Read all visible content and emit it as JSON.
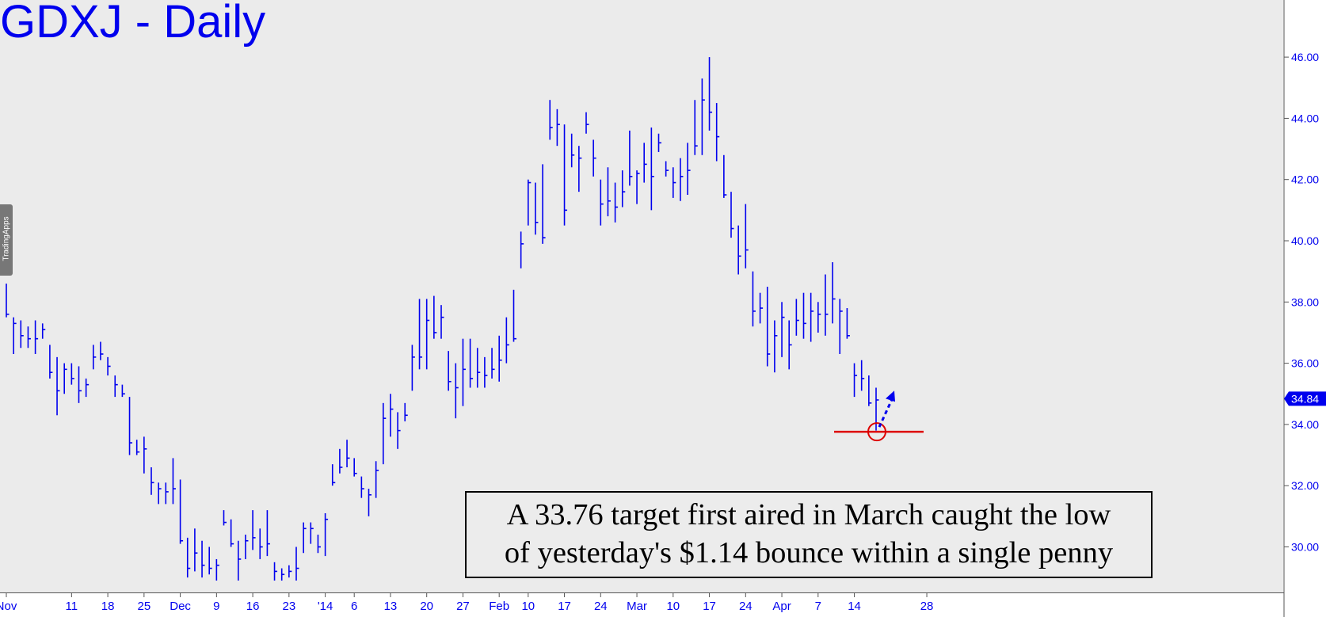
{
  "chart_data": {
    "type": "ohlc",
    "title": "GDXJ - Daily",
    "ylim": [
      28.9,
      47.4
    ],
    "y_ticks": [
      "30.00",
      "32.00",
      "34.00",
      "36.00",
      "38.00",
      "40.00",
      "42.00",
      "44.00",
      "46.00"
    ],
    "y_tick_values": [
      30,
      32,
      34,
      36,
      38,
      40,
      42,
      44,
      46
    ],
    "x_tick_labels": [
      "Nov",
      "11",
      "18",
      "25",
      "Dec",
      "9",
      "16",
      "23",
      "'14",
      "6",
      "13",
      "20",
      "27",
      "Feb",
      "10",
      "17",
      "24",
      "Mar",
      "10",
      "17",
      "24",
      "Apr",
      "7",
      "14",
      "28"
    ],
    "x_tick_bar_index": [
      0,
      9,
      14,
      19,
      24,
      29,
      34,
      39,
      44,
      48,
      53,
      58,
      63,
      68,
      72,
      77,
      82,
      87,
      92,
      97,
      102,
      107,
      112,
      117,
      127
    ],
    "last_price": "34.84",
    "target_level": 33.76,
    "bars": [
      [
        38.6,
        37.5,
        37.6
      ],
      [
        37.5,
        36.3,
        37.3
      ],
      [
        37.4,
        36.5,
        36.9
      ],
      [
        37.2,
        36.5,
        36.8
      ],
      [
        37.4,
        36.3,
        36.8
      ],
      [
        37.3,
        36.8,
        37.1
      ],
      [
        36.6,
        35.5,
        35.7
      ],
      [
        36.2,
        34.3,
        35.1
      ],
      [
        36.0,
        35.0,
        35.8
      ],
      [
        36.0,
        35.3,
        35.5
      ],
      [
        35.9,
        34.7,
        35.1
      ],
      [
        35.5,
        34.9,
        35.3
      ],
      [
        36.6,
        35.8,
        36.2
      ],
      [
        36.7,
        36.1,
        36.3
      ],
      [
        36.2,
        35.6,
        35.9
      ],
      [
        35.6,
        34.9,
        35.3
      ],
      [
        35.3,
        34.9,
        35.0
      ],
      [
        34.9,
        33.0,
        33.4
      ],
      [
        33.5,
        33.0,
        33.1
      ],
      [
        33.6,
        32.4,
        33.2
      ],
      [
        32.6,
        31.7,
        32.1
      ],
      [
        32.1,
        31.4,
        31.9
      ],
      [
        32.1,
        31.4,
        31.8
      ],
      [
        32.9,
        31.4,
        31.9
      ],
      [
        32.2,
        30.1,
        30.2
      ],
      [
        30.3,
        29.0,
        29.3
      ],
      [
        30.6,
        29.2,
        29.8
      ],
      [
        30.2,
        29.0,
        29.4
      ],
      [
        30.0,
        29.1,
        29.3
      ],
      [
        29.6,
        28.9,
        29.4
      ],
      [
        31.2,
        30.7,
        30.8
      ],
      [
        30.9,
        30.0,
        30.1
      ],
      [
        30.2,
        28.9,
        29.6
      ],
      [
        30.4,
        29.6,
        30.2
      ],
      [
        31.2,
        29.9,
        30.3
      ],
      [
        30.6,
        29.6,
        30.0
      ],
      [
        31.2,
        29.7,
        30.1
      ],
      [
        29.5,
        28.9,
        29.2
      ],
      [
        29.3,
        28.9,
        29.1
      ],
      [
        29.4,
        29.0,
        29.2
      ],
      [
        30.0,
        28.9,
        29.3
      ],
      [
        30.8,
        29.8,
        30.6
      ],
      [
        30.8,
        30.1,
        30.6
      ],
      [
        30.4,
        29.8,
        30.0
      ],
      [
        31.1,
        29.7,
        30.9
      ],
      [
        32.7,
        32.0,
        32.1
      ],
      [
        33.2,
        32.4,
        32.6
      ],
      [
        33.5,
        32.6,
        32.9
      ],
      [
        32.9,
        32.3,
        32.4
      ],
      [
        32.3,
        31.6,
        31.9
      ],
      [
        31.9,
        31.0,
        31.7
      ],
      [
        32.8,
        31.6,
        32.5
      ],
      [
        34.7,
        32.7,
        34.2
      ],
      [
        35.0,
        33.6,
        34.5
      ],
      [
        34.4,
        33.2,
        33.8
      ],
      [
        34.7,
        34.1,
        34.3
      ],
      [
        36.6,
        35.1,
        36.2
      ],
      [
        38.1,
        35.8,
        36.2
      ],
      [
        38.1,
        35.8,
        37.4
      ],
      [
        38.2,
        36.8,
        37.0
      ],
      [
        37.9,
        36.8,
        37.5
      ],
      [
        36.4,
        35.1,
        35.4
      ],
      [
        36.0,
        34.2,
        35.2
      ],
      [
        36.8,
        34.6,
        35.8
      ],
      [
        36.8,
        35.2,
        35.5
      ],
      [
        36.5,
        35.2,
        35.7
      ],
      [
        36.2,
        35.2,
        35.6
      ],
      [
        36.5,
        35.5,
        35.8
      ],
      [
        36.9,
        35.4,
        36.1
      ],
      [
        37.5,
        36.0,
        36.6
      ],
      [
        38.4,
        36.7,
        36.8
      ],
      [
        40.3,
        39.1,
        39.9
      ],
      [
        42.0,
        40.5,
        41.9
      ],
      [
        41.9,
        40.2,
        40.6
      ],
      [
        42.5,
        39.9,
        40.1
      ],
      [
        44.6,
        43.3,
        43.7
      ],
      [
        44.3,
        43.1,
        43.8
      ],
      [
        43.8,
        40.5,
        41.0
      ],
      [
        43.5,
        42.4,
        42.8
      ],
      [
        43.1,
        41.6,
        42.7
      ],
      [
        44.2,
        43.5,
        43.8
      ],
      [
        43.3,
        42.1,
        42.7
      ],
      [
        42.0,
        40.5,
        41.2
      ],
      [
        42.4,
        40.8,
        41.3
      ],
      [
        41.9,
        40.6,
        41.1
      ],
      [
        42.3,
        41.1,
        41.6
      ],
      [
        43.6,
        41.8,
        42.1
      ],
      [
        42.3,
        41.2,
        42.2
      ],
      [
        43.2,
        41.9,
        42.5
      ],
      [
        43.7,
        41.0,
        42.1
      ],
      [
        43.5,
        42.9,
        43.2
      ],
      [
        42.6,
        42.1,
        42.3
      ],
      [
        42.4,
        41.4,
        41.9
      ],
      [
        42.7,
        41.3,
        42.1
      ],
      [
        43.2,
        41.5,
        42.3
      ],
      [
        44.6,
        42.8,
        43.1
      ],
      [
        45.3,
        42.8,
        44.6
      ],
      [
        46.0,
        43.6,
        44.2
      ],
      [
        44.5,
        42.6,
        43.4
      ],
      [
        42.8,
        41.4,
        41.5
      ],
      [
        41.6,
        40.1,
        40.4
      ],
      [
        40.5,
        38.9,
        39.5
      ],
      [
        41.2,
        39.1,
        39.7
      ],
      [
        39.0,
        37.2,
        37.7
      ],
      [
        38.3,
        37.3,
        37.8
      ],
      [
        38.5,
        35.9,
        36.3
      ],
      [
        37.4,
        35.7,
        36.9
      ],
      [
        38.0,
        36.2,
        37.5
      ],
      [
        37.4,
        35.8,
        36.6
      ],
      [
        38.1,
        36.9,
        37.4
      ],
      [
        38.3,
        36.8,
        37.3
      ],
      [
        38.3,
        36.7,
        37.7
      ],
      [
        38.0,
        37.0,
        37.6
      ],
      [
        38.9,
        36.9,
        37.6
      ],
      [
        39.3,
        37.3,
        38.1
      ],
      [
        38.1,
        36.3,
        37.7
      ],
      [
        37.8,
        36.8,
        36.9
      ],
      [
        36.0,
        34.9,
        35.6
      ],
      [
        36.1,
        35.1,
        35.5
      ],
      [
        35.6,
        34.6,
        34.7
      ],
      [
        35.2,
        33.8,
        34.8
      ]
    ]
  },
  "annotation": {
    "line1": "A 33.76 target first aired in March caught the low",
    "line2": "of yesterday's $1.14 bounce within a single penny"
  },
  "watermark": "TradingApps",
  "colors": {
    "bars": "#0000ee",
    "target_line": "#dd0000",
    "target_circle": "#dd0000",
    "arrow": "#0000ee",
    "background": "#ebebeb"
  }
}
